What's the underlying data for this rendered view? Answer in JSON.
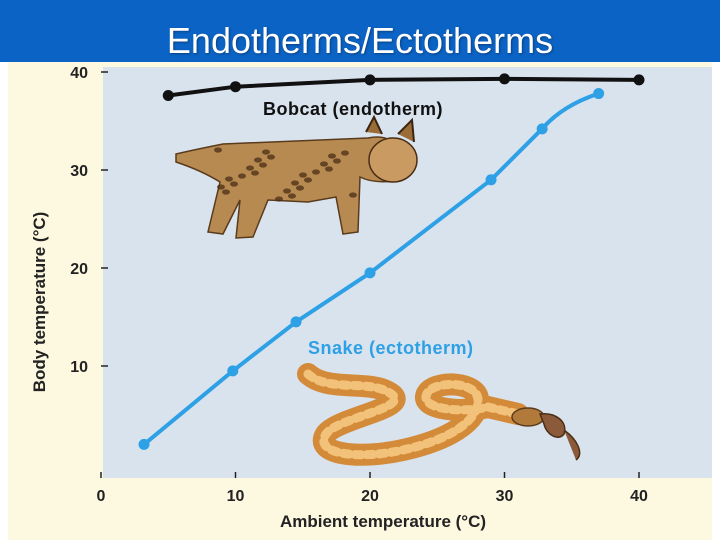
{
  "slide": {
    "title": "Endotherms/Ectotherms"
  },
  "colors": {
    "title_bar": "#0b63c5",
    "plot_background": "#d9e3ee",
    "panel_background": "#fdf8e0",
    "endotherm_series": "#111111",
    "ectotherm_series": "#2ea0e6"
  },
  "illustrations": {
    "bobcat": "bobcat-illustration",
    "snake": "snake-with-mouse-illustration"
  },
  "chart_data": {
    "type": "line",
    "title": "",
    "xlabel": "Ambient temperature (°C)",
    "ylabel": "Body temperature (°C)",
    "xlim": [
      0,
      45
    ],
    "ylim": [
      0,
      42
    ],
    "x_ticks": [
      "0",
      "10",
      "20",
      "30",
      "40"
    ],
    "y_ticks": [
      "10",
      "20",
      "30",
      "40"
    ],
    "grid": false,
    "legend": "inline labels",
    "series": [
      {
        "name": "Bobcat (endotherm)",
        "color": "#111111",
        "points": [
          [
            5,
            37.6
          ],
          [
            10,
            38.5
          ],
          [
            20,
            39.2
          ],
          [
            30,
            39.3
          ],
          [
            40,
            39.2
          ]
        ]
      },
      {
        "name": "Snake (ectotherm)",
        "color": "#2ea0e6",
        "points": [
          [
            3.2,
            2.0
          ],
          [
            9.8,
            9.5
          ],
          [
            14.5,
            14.5
          ],
          [
            20,
            19.5
          ],
          [
            29,
            29
          ],
          [
            32.8,
            34.2
          ],
          [
            37,
            37.8
          ]
        ]
      }
    ]
  }
}
